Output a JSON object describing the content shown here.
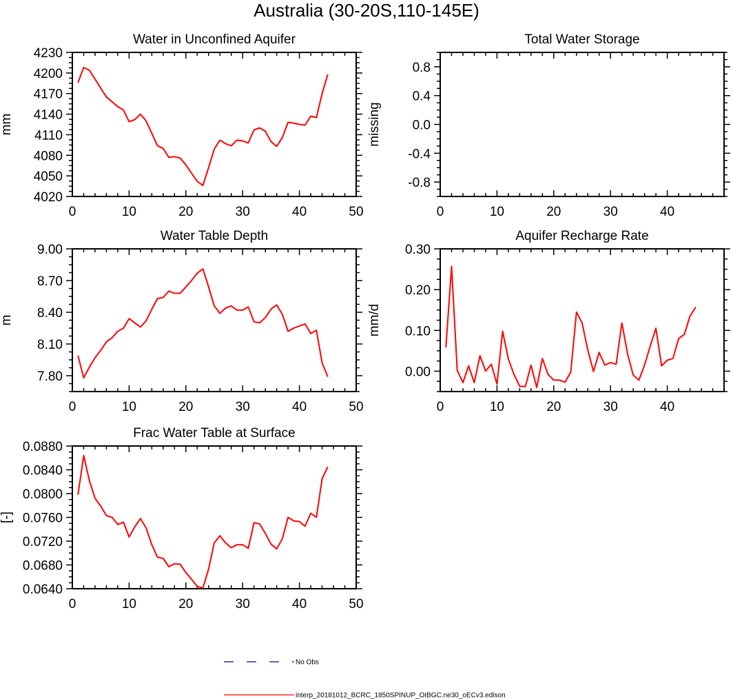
{
  "figure_title": "Australia (30-20S,110-145E)",
  "legend": {
    "placement": "bottom-center",
    "items": [
      {
        "label": "No Obs",
        "color": "#00008b",
        "dash": "dashed"
      },
      {
        "label": "interp_20181012_BCRC_1850SPINUP_OIBGC.ne30_oECv3.edison",
        "color": "#ff0000",
        "dash": "solid"
      }
    ]
  },
  "chart_data": [
    {
      "type": "line",
      "title": "Water in Unconfined Aquifer",
      "ylabel": "mm",
      "xlim": [
        0,
        50
      ],
      "ylim": [
        4020,
        4230
      ],
      "xticks": [
        0,
        10,
        20,
        30,
        40,
        50
      ],
      "xtick_labels": [
        "0",
        "10",
        "20",
        "30",
        "40",
        "50"
      ],
      "yticks": [
        4020,
        4050,
        4080,
        4110,
        4140,
        4170,
        4200,
        4230
      ],
      "ytick_labels": [
        "4020",
        "4050",
        "4080",
        "4110",
        "4140",
        "4170",
        "4200",
        "4230"
      ],
      "series": [
        {
          "color": "#ff0000",
          "x": [
            1,
            2,
            3,
            4,
            5,
            6,
            7,
            8,
            9,
            10,
            11,
            12,
            13,
            14,
            15,
            16,
            17,
            18,
            19,
            20,
            21,
            22,
            23,
            24,
            25,
            26,
            27,
            28,
            29,
            30,
            31,
            32,
            33,
            34,
            35,
            36,
            37,
            38,
            39,
            40,
            41,
            42,
            43,
            44,
            45
          ],
          "y": [
            4186,
            4208,
            4204,
            4191,
            4178,
            4165,
            4158,
            4151,
            4146,
            4129,
            4132,
            4140,
            4130,
            4112,
            4094,
            4090,
            4077,
            4078,
            4076,
            4066,
            4054,
            4042,
            4036,
            4062,
            4089,
            4102,
            4097,
            4094,
            4102,
            4101,
            4098,
            4117,
            4120,
            4115,
            4100,
            4093,
            4106,
            4128,
            4127,
            4125,
            4124,
            4137,
            4135,
            4170,
            4198
          ]
        }
      ]
    },
    {
      "type": "line",
      "title": "Total Water Storage",
      "ylabel": "missing",
      "xlim": [
        0,
        50
      ],
      "ylim": [
        -1.0,
        1.0
      ],
      "xticks": [
        0,
        10,
        20,
        30,
        40,
        50
      ],
      "xtick_labels": [
        "0",
        "10",
        "20",
        "30",
        "40",
        ""
      ],
      "yticks": [
        -0.8,
        -0.4,
        0.0,
        0.4,
        0.8
      ],
      "ytick_labels": [
        "-0.8",
        "-0.4",
        "0.0",
        "0.4",
        "0.8"
      ],
      "series": []
    },
    {
      "type": "line",
      "title": "Water Table Depth",
      "ylabel": "m",
      "xlim": [
        0,
        50
      ],
      "ylim": [
        7.65,
        9.0
      ],
      "xticks": [
        0,
        10,
        20,
        30,
        40,
        50
      ],
      "xtick_labels": [
        "0",
        "10",
        "20",
        "30",
        "40",
        "50"
      ],
      "yticks": [
        7.8,
        8.1,
        8.4,
        8.7,
        9.0
      ],
      "ytick_labels": [
        "7.80",
        "8.10",
        "8.40",
        "8.70",
        "9.00"
      ],
      "series": [
        {
          "color": "#ff0000",
          "x": [
            1,
            2,
            3,
            4,
            5,
            6,
            7,
            8,
            9,
            10,
            11,
            12,
            13,
            14,
            15,
            16,
            17,
            18,
            19,
            20,
            21,
            22,
            23,
            24,
            25,
            26,
            27,
            28,
            29,
            30,
            31,
            32,
            33,
            34,
            35,
            36,
            37,
            38,
            39,
            40,
            41,
            42,
            43,
            44,
            45
          ],
          "y": [
            7.99,
            7.78,
            7.88,
            7.97,
            8.04,
            8.12,
            8.16,
            8.22,
            8.25,
            8.34,
            8.3,
            8.26,
            8.32,
            8.43,
            8.53,
            8.54,
            8.6,
            8.58,
            8.58,
            8.64,
            8.7,
            8.77,
            8.81,
            8.64,
            8.46,
            8.39,
            8.44,
            8.46,
            8.42,
            8.42,
            8.45,
            8.31,
            8.3,
            8.35,
            8.43,
            8.47,
            8.38,
            8.22,
            8.25,
            8.27,
            8.29,
            8.2,
            8.23,
            7.92,
            7.79
          ]
        }
      ]
    },
    {
      "type": "line",
      "title": "Aquifer Recharge Rate",
      "ylabel": "mm/d",
      "xlim": [
        0,
        50
      ],
      "ylim": [
        -0.05,
        0.3
      ],
      "xticks": [
        0,
        10,
        20,
        30,
        40,
        50
      ],
      "xtick_labels": [
        "0",
        "10",
        "20",
        "30",
        "40",
        ""
      ],
      "yticks": [
        0.0,
        0.1,
        0.2,
        0.3
      ],
      "ytick_labels": [
        "0.00",
        "0.10",
        "0.20",
        "0.30"
      ],
      "series": [
        {
          "color": "#ff0000",
          "x": [
            1,
            2,
            3,
            4,
            5,
            6,
            7,
            8,
            9,
            10,
            11,
            12,
            13,
            14,
            15,
            16,
            17,
            18,
            19,
            20,
            21,
            22,
            23,
            24,
            25,
            26,
            27,
            28,
            29,
            30,
            31,
            32,
            33,
            34,
            35,
            36,
            37,
            38,
            39,
            40,
            41,
            42,
            43,
            44,
            45
          ],
          "y": [
            0.058,
            0.257,
            0.002,
            -0.028,
            0.013,
            -0.028,
            0.038,
            0.0,
            0.017,
            -0.032,
            0.098,
            0.03,
            -0.008,
            -0.037,
            -0.038,
            0.015,
            -0.04,
            0.031,
            -0.008,
            -0.022,
            -0.022,
            -0.027,
            -0.002,
            0.145,
            0.118,
            0.052,
            -0.001,
            0.046,
            0.015,
            0.021,
            0.017,
            0.118,
            0.043,
            -0.01,
            -0.022,
            0.015,
            0.062,
            0.105,
            0.013,
            0.027,
            0.031,
            0.08,
            0.09,
            0.135,
            0.157
          ]
        }
      ]
    },
    {
      "type": "line",
      "title": "Frac Water Table at Surface",
      "ylabel": "[-]",
      "xlim": [
        0,
        50
      ],
      "ylim": [
        0.064,
        0.088
      ],
      "xticks": [
        0,
        10,
        20,
        30,
        40,
        50
      ],
      "xtick_labels": [
        "0",
        "10",
        "20",
        "30",
        "40",
        "50"
      ],
      "yticks": [
        0.064,
        0.068,
        0.072,
        0.076,
        0.08,
        0.084,
        0.088
      ],
      "ytick_labels": [
        "0.0640",
        "0.0680",
        "0.0720",
        "0.0760",
        "0.0800",
        "0.0840",
        "0.0880"
      ],
      "series": [
        {
          "color": "#ff0000",
          "x": [
            1,
            2,
            3,
            4,
            5,
            6,
            7,
            8,
            9,
            10,
            11,
            12,
            13,
            14,
            15,
            16,
            17,
            18,
            19,
            20,
            21,
            22,
            23,
            24,
            25,
            26,
            27,
            28,
            29,
            30,
            31,
            32,
            33,
            34,
            35,
            36,
            37,
            38,
            39,
            40,
            41,
            42,
            43,
            44,
            45
          ],
          "y": [
            0.0798,
            0.0864,
            0.0822,
            0.0792,
            0.0779,
            0.0763,
            0.076,
            0.0748,
            0.0752,
            0.0727,
            0.0744,
            0.0758,
            0.0742,
            0.0714,
            0.0693,
            0.0691,
            0.0677,
            0.0682,
            0.0681,
            0.0667,
            0.0656,
            0.0644,
            0.0641,
            0.0673,
            0.0717,
            0.0729,
            0.0717,
            0.0709,
            0.0714,
            0.0714,
            0.0708,
            0.0751,
            0.0749,
            0.0733,
            0.0715,
            0.0707,
            0.0724,
            0.076,
            0.0754,
            0.0753,
            0.0745,
            0.0767,
            0.076,
            0.0825,
            0.0845
          ]
        }
      ]
    }
  ]
}
